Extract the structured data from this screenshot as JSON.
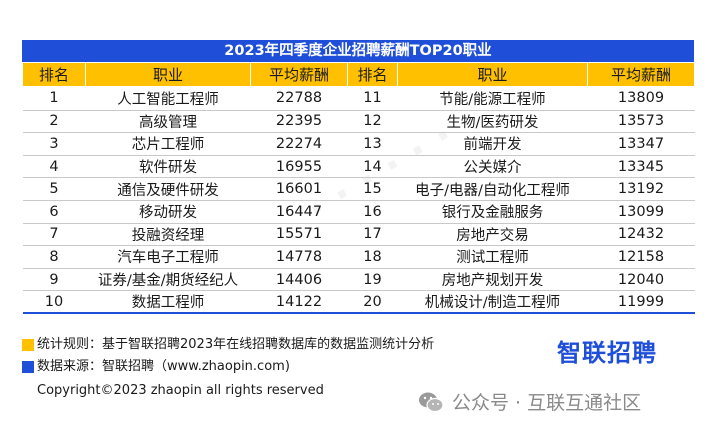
{
  "table": {
    "title": "2023年四季度企业招聘薪酬TOP20职业",
    "headers": [
      "排名",
      "职业",
      "平均薪酬",
      "排名",
      "职业",
      "平均薪酬"
    ],
    "rows": [
      {
        "rank_a": "1",
        "job_a": "人工智能工程师",
        "salary_a": "22788",
        "rank_b": "11",
        "job_b": "节能/能源工程师",
        "salary_b": "13809"
      },
      {
        "rank_a": "2",
        "job_a": "高级管理",
        "salary_a": "22395",
        "rank_b": "12",
        "job_b": "生物/医药研发",
        "salary_b": "13573"
      },
      {
        "rank_a": "3",
        "job_a": "芯片工程师",
        "salary_a": "22274",
        "rank_b": "13",
        "job_b": "前端开发",
        "salary_b": "13347"
      },
      {
        "rank_a": "4",
        "job_a": "软件研发",
        "salary_a": "16955",
        "rank_b": "14",
        "job_b": "公关媒介",
        "salary_b": "13345"
      },
      {
        "rank_a": "5",
        "job_a": "通信及硬件研发",
        "salary_a": "16601",
        "rank_b": "15",
        "job_b": "电子/电器/自动化工程师",
        "salary_b": "13192"
      },
      {
        "rank_a": "6",
        "job_a": "移动研发",
        "salary_a": "16447",
        "rank_b": "16",
        "job_b": "银行及金融服务",
        "salary_b": "13099"
      },
      {
        "rank_a": "7",
        "job_a": "投融资经理",
        "salary_a": "15571",
        "rank_b": "17",
        "job_b": "房地产交易",
        "salary_b": "12432"
      },
      {
        "rank_a": "8",
        "job_a": "汽车电子工程师",
        "salary_a": "14778",
        "rank_b": "18",
        "job_b": "测试工程师",
        "salary_b": "12158"
      },
      {
        "rank_a": "9",
        "job_a": "证券/基金/期货经纪人",
        "salary_a": "14406",
        "rank_b": "19",
        "job_b": "房地产规划开发",
        "salary_b": "12040"
      },
      {
        "rank_a": "10",
        "job_a": "数据工程师",
        "salary_a": "14122",
        "rank_b": "20",
        "job_b": "机械设计/制造工程师",
        "salary_b": "11999"
      }
    ]
  },
  "notes": {
    "rule": "统计规则：基于智联招聘2023年在线招聘数据库的数据监测统计分析",
    "source": "数据来源：智联招聘（www.zhaopin.com)",
    "copyright": "Copyright©2023 zhaopin all rights reserved"
  },
  "brand": {
    "logo_text": "智联招聘"
  },
  "wechat": {
    "label": "公众号 · 互联互通社区"
  },
  "colors": {
    "accent_blue": "#1f4fd8",
    "header_yellow": "#ffc000",
    "note_yellow": "#ffc000",
    "note_blue": "#1f4fd8"
  }
}
